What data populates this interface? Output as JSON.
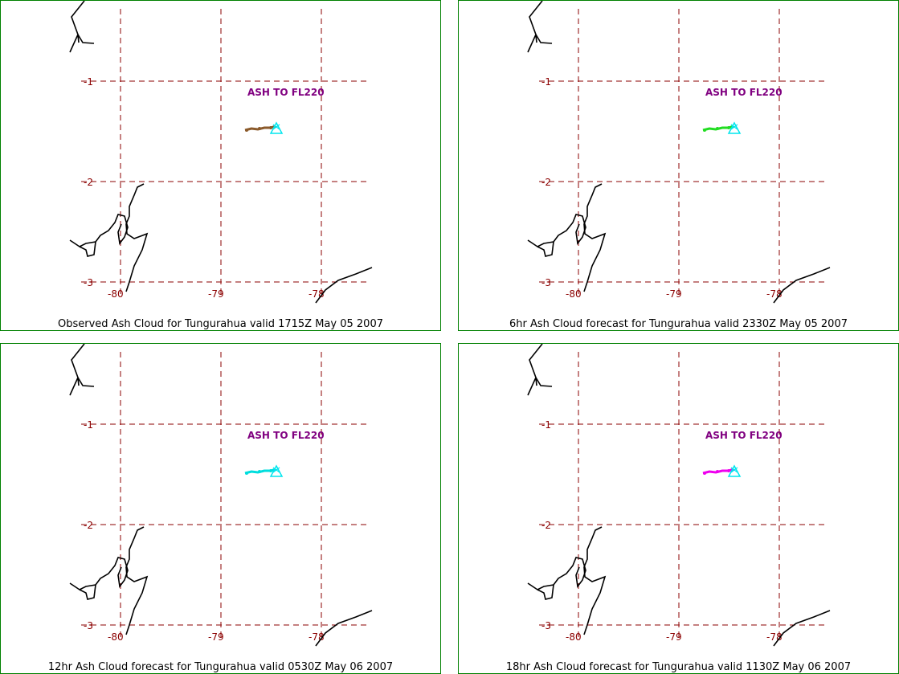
{
  "colors": {
    "border": "#008000",
    "grid": "#8b0000",
    "coast": "#000000",
    "ash_label": "#800080",
    "source_marker": "#00e5ee"
  },
  "ash_label": "ASH TO FL220",
  "lat_ticks": [
    "-1",
    "-2",
    "-3"
  ],
  "lon_ticks": [
    "-80",
    "-79",
    "-78"
  ],
  "panels": [
    {
      "title": "Observed Ash Cloud for Tungurahua valid 1715Z May 05 2007",
      "cloud_color": "#8b5a2b"
    },
    {
      "title": "6hr Ash Cloud forecast for Tungurahua valid 2330Z May 05 2007",
      "cloud_color": "#22dd22"
    },
    {
      "title": "12hr Ash Cloud forecast for Tungurahua valid 0530Z May 06 2007",
      "cloud_color": "#00dddd"
    },
    {
      "title": "18hr Ash Cloud forecast for Tungurahua valid 1130Z May 06 2007",
      "cloud_color": "#ee00ee"
    }
  ]
}
